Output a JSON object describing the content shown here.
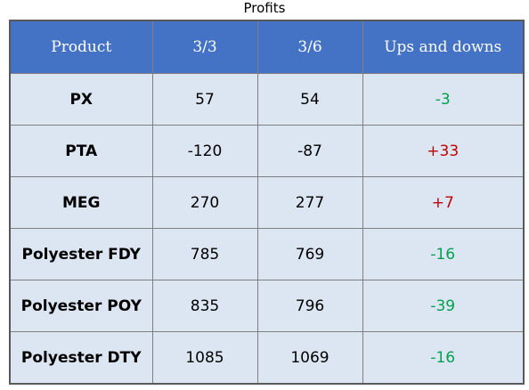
{
  "chart_data": {
    "type": "table",
    "title": "Profits",
    "columns": [
      "Product",
      "3/3",
      "3/6",
      "Ups and downs"
    ],
    "rows": [
      {
        "product": "PX",
        "d1": "57",
        "d2": "54",
        "change": "-3"
      },
      {
        "product": "PTA",
        "d1": "-120",
        "d2": "-87",
        "change": "+33"
      },
      {
        "product": "MEG",
        "d1": "270",
        "d2": "277",
        "change": "+7"
      },
      {
        "product": "Polyester FDY",
        "d1": "785",
        "d2": "769",
        "change": "-16"
      },
      {
        "product": "Polyester POY",
        "d1": "835",
        "d2": "796",
        "change": "-39"
      },
      {
        "product": "Polyester DTY",
        "d1": "1085",
        "d2": "1069",
        "change": "-16"
      }
    ]
  },
  "colors": {
    "header_bg": "#4472c4",
    "cell_bg": "#dce6f2",
    "increase": "#c00000",
    "decrease": "#00a050"
  }
}
